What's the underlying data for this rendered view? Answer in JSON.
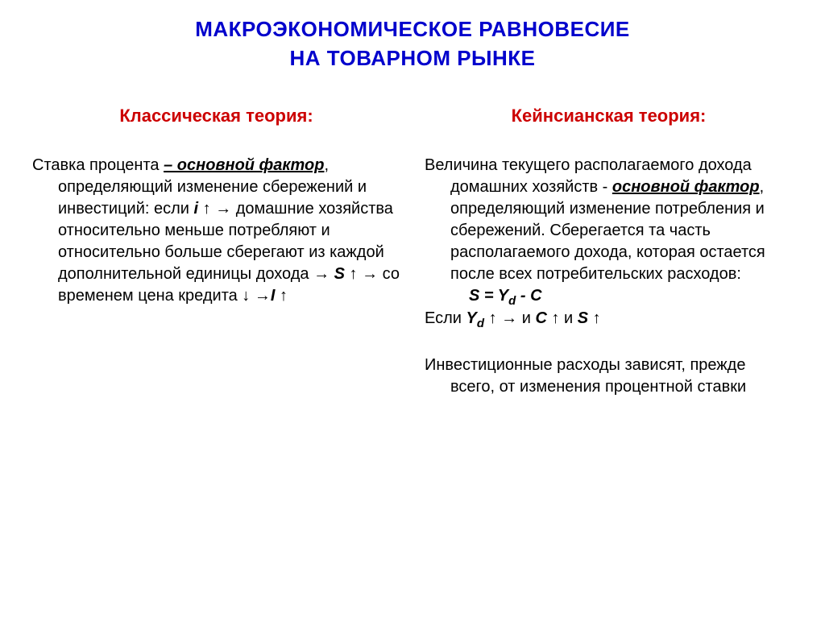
{
  "title": {
    "line1": "МАКРОЭКОНОМИЧЕСКОЕ РАВНОВЕСИЕ",
    "line2": "НА ТОВАРНОМ РЫНКЕ"
  },
  "left": {
    "heading": "Классическая теория:",
    "p1_start": "Ставка процента ",
    "p1_bold": "– основной фактор",
    "p1_mid": ", определяющий изменение сбережений и инвестиций: если  ",
    "p1_var_i": "i",
    "p1_after_i": " ↑ → домашние хозяйства относительно меньше потребляют и относительно больше сберегают из каждой дополнительной единицы дохода → ",
    "p1_var_s": "S",
    "p1_after_s": " ↑ → со временем цена кредита ↓ →",
    "p1_var_I": "I",
    "p1_end": " ↑"
  },
  "right": {
    "heading": "Кейнсианская теория:",
    "p1_start": "Величина текущего располагаемого дохода домашних хозяйств - ",
    "p1_bold": "основной фактор",
    "p1_end": ", определяющий изменение потребления и сбережений. Сберегается та часть располагаемого дохода, которая остается после всех потребительских расходов:",
    "formula1_S": "S",
    "formula1_eq": " = ",
    "formula1_Y": "Y",
    "formula1_d": "d",
    "formula1_minus": " - ",
    "formula1_C": "C",
    "line2_if": "Если   ",
    "line2_Y": "Y",
    "line2_d": "d",
    "line2_arr": " ↑   →   и  ",
    "line2_C": "C",
    "line2_and": " ↑  и  ",
    "line2_S": "S",
    "line2_up": " ↑",
    "p2": "Инвестиционные расходы зависят, прежде всего, от изменения процентной ставки"
  },
  "colors": {
    "title": "#0000cc",
    "heading": "#cc0000",
    "text": "#000000",
    "background": "#ffffff"
  }
}
